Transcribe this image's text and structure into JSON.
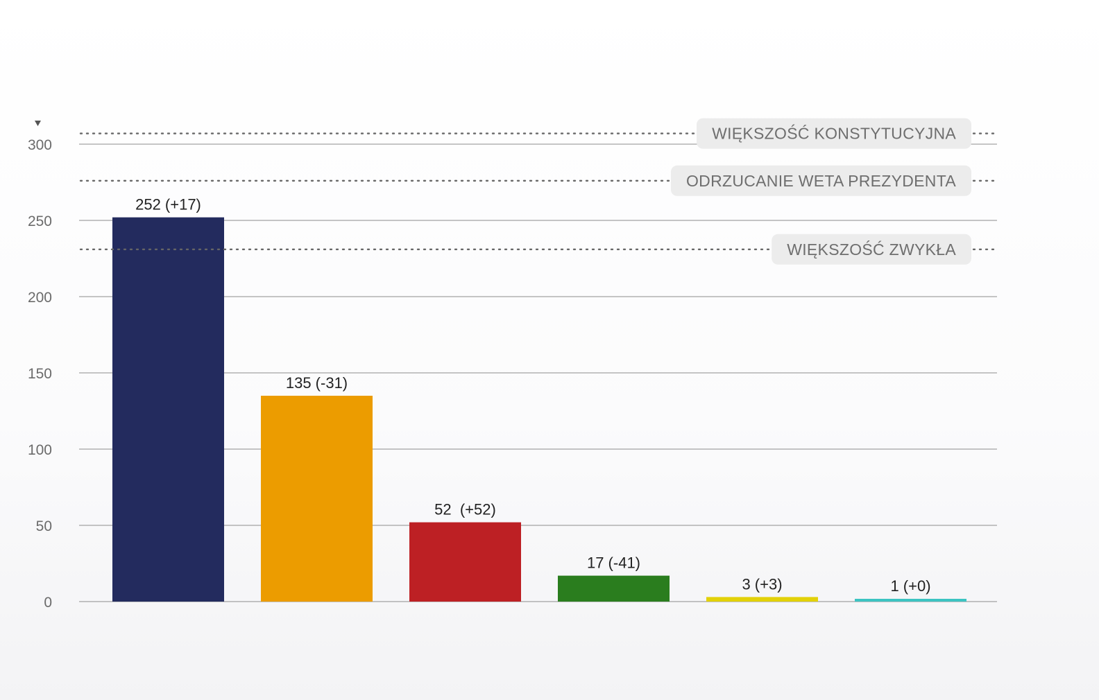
{
  "chart_data": {
    "type": "bar",
    "title": "",
    "xlabel": "",
    "ylabel": "",
    "ylim": [
      0,
      300
    ],
    "yticks": [
      "0",
      "50",
      "100",
      "150",
      "200",
      "250",
      "300"
    ],
    "grid": true,
    "bars": [
      {
        "value": 252,
        "label": "252 (+17)",
        "color": "#232b5e"
      },
      {
        "value": 135,
        "label": "135 (-31)",
        "color": "#ec9c00"
      },
      {
        "value": 52,
        "label": "52  (+52)",
        "color": "#bd2024"
      },
      {
        "value": 17,
        "label": "17 (-41)",
        "color": "#2a7d1e"
      },
      {
        "value": 3,
        "label": "3 (+3)",
        "color": "#e2d109"
      },
      {
        "value": 1,
        "label": "1 (+0)",
        "color": "#3cc4c2"
      }
    ],
    "thresholds": [
      {
        "value": 307,
        "label": "WIĘKSZOŚĆ KONSTYTUCYJNA"
      },
      {
        "value": 276,
        "label": "ODRZUCANIE WETA PREZYDENTA"
      },
      {
        "value": 231,
        "label": "WIĘKSZOŚĆ ZWYKŁA"
      }
    ]
  }
}
